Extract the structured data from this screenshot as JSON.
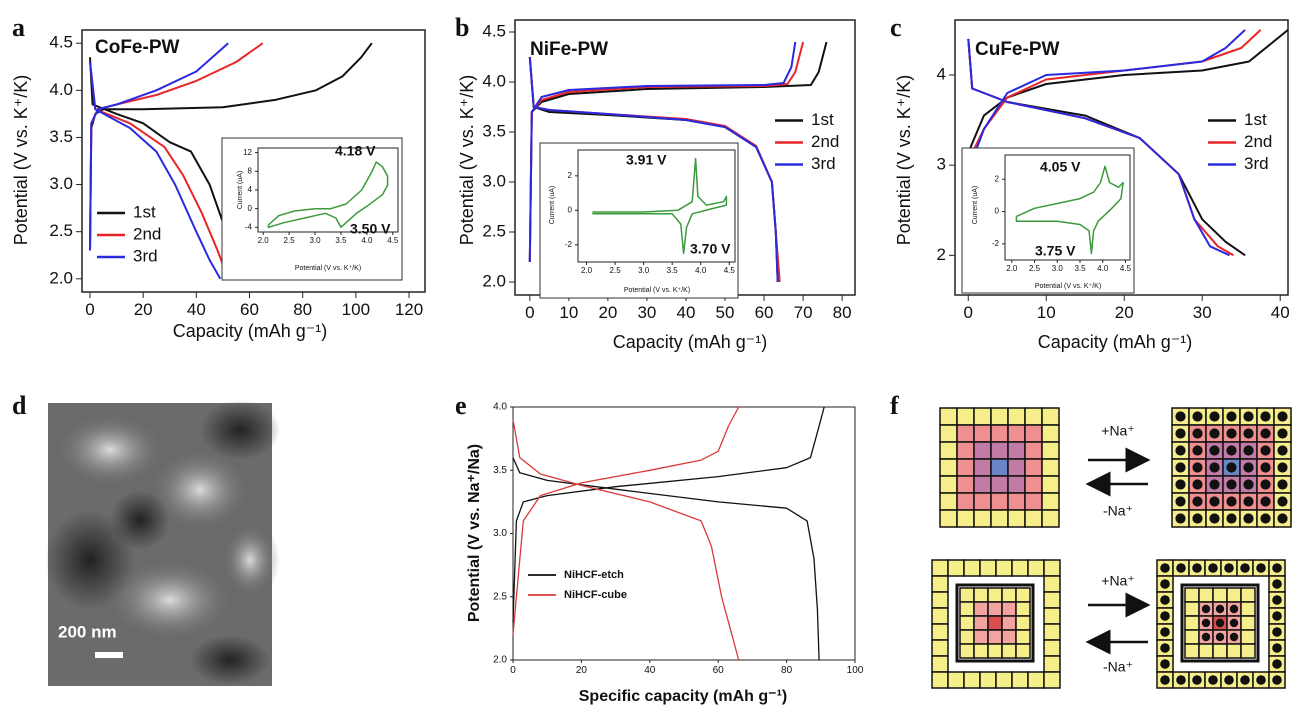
{
  "panel_labels": [
    "a",
    "b",
    "c",
    "d",
    "e",
    "f"
  ],
  "chart_data": [
    {
      "type": "line",
      "title": "CoFe-PW",
      "x_label": "Capacity (mAh g⁻¹)",
      "y_label": "Potential (V vs. K⁺/K)",
      "xlim": [
        -3,
        126
      ],
      "ylim": [
        1.86,
        4.64
      ],
      "xticks": [
        0,
        20,
        40,
        60,
        80,
        100,
        120
      ],
      "yticks": [
        {
          "value": 2,
          "label": "2.0"
        },
        2.5,
        {
          "value": 3,
          "label": "3.0"
        },
        3.5,
        {
          "value": 4,
          "label": "4.0"
        },
        4.5
      ],
      "legend": "lower left",
      "series": [
        {
          "name": "1st",
          "color": "#111111",
          "x": [
            0,
            0.5,
            2,
            5,
            20,
            50,
            70,
            85,
            95,
            102,
            106,
            null,
            0,
            1,
            10,
            20,
            30,
            38,
            45,
            50,
            55,
            60
          ],
          "values": [
            2.3,
            3.6,
            3.75,
            3.8,
            3.8,
            3.82,
            3.9,
            4.0,
            4.15,
            4.35,
            4.5,
            null,
            4.35,
            3.85,
            3.75,
            3.65,
            3.45,
            3.35,
            3.0,
            2.6,
            2.3,
            2.0
          ]
        },
        {
          "name": "2nd",
          "color": "#e8262a",
          "x": [
            0,
            0.5,
            3,
            10,
            25,
            40,
            55,
            65,
            null,
            0,
            2,
            15,
            28,
            35,
            42,
            48,
            52
          ],
          "values": [
            2.3,
            3.65,
            3.8,
            3.85,
            3.95,
            4.1,
            4.3,
            4.5,
            null,
            4.3,
            3.8,
            3.65,
            3.4,
            3.1,
            2.7,
            2.3,
            2.0
          ]
        },
        {
          "name": "3rd",
          "color": "#2a2ae0",
          "x": [
            0,
            0.5,
            3,
            10,
            25,
            40,
            52,
            null,
            0,
            2,
            15,
            25,
            32,
            40,
            45,
            49
          ],
          "values": [
            2.3,
            3.65,
            3.8,
            3.85,
            4.0,
            4.2,
            4.5,
            null,
            4.3,
            3.8,
            3.6,
            3.35,
            3.0,
            2.5,
            2.2,
            2.0
          ]
        }
      ]
    },
    {
      "type": "line",
      "x_label": "Potential (V vs. K⁺/K)",
      "y_label": "Current (uA)",
      "xlim": [
        1.9,
        4.6
      ],
      "ylim": [
        -5,
        13
      ],
      "xticks": [
        {
          "value": 2,
          "label": "2.0"
        },
        2.5,
        {
          "value": 3,
          "label": "3.0"
        },
        3.5,
        {
          "value": 4,
          "label": "4.0"
        },
        4.5
      ],
      "yticks": [
        -4,
        0,
        4,
        8,
        12
      ],
      "annotations": [
        "4.18 V",
        "3.50 V"
      ],
      "series": [
        {
          "color": "#3c9a3c",
          "x": [
            2.1,
            2.3,
            2.6,
            3.0,
            3.3,
            3.6,
            3.9,
            4.1,
            4.18,
            4.3,
            4.4,
            4.4,
            4.3,
            4.0,
            3.8,
            3.6,
            3.5,
            3.4,
            3.2,
            3.0,
            2.8,
            2.6,
            2.4,
            2.1,
            2.1
          ],
          "values": [
            -3.5,
            -1.5,
            -0.5,
            0,
            0,
            1,
            4,
            8,
            10,
            9,
            7,
            5,
            3,
            0.5,
            -1,
            -3,
            -4,
            -2,
            -1,
            -1.5,
            -2,
            -2.5,
            -3,
            -4,
            -3.5
          ]
        }
      ]
    },
    {
      "type": "line",
      "title": "NiFe-PW",
      "x_label": "Capacity (mAh g⁻¹)",
      "y_label": "Potential (V vs. K⁺/K)",
      "xlim": [
        -3.8,
        83.3
      ],
      "ylim": [
        1.87,
        4.62
      ],
      "xticks": [
        0,
        10,
        20,
        30,
        40,
        50,
        60,
        70,
        80
      ],
      "yticks": [
        {
          "value": 2,
          "label": "2.0"
        },
        2.5,
        {
          "value": 3,
          "label": "3.0"
        },
        3.5,
        {
          "value": 4,
          "label": "4.0"
        },
        4.5
      ],
      "legend": "center right",
      "series": [
        {
          "name": "1st",
          "color": "#111111",
          "x": [
            0,
            0.5,
            3,
            10,
            30,
            60,
            72,
            74,
            76,
            null,
            0,
            1,
            5,
            20,
            40,
            50,
            58,
            62,
            63,
            63.5
          ],
          "values": [
            2.2,
            3.7,
            3.8,
            3.88,
            3.93,
            3.95,
            3.97,
            4.1,
            4.4,
            null,
            4.25,
            3.75,
            3.7,
            3.67,
            3.62,
            3.55,
            3.35,
            3.0,
            2.5,
            2.0
          ]
        },
        {
          "name": "2nd",
          "color": "#e8262a",
          "x": [
            0,
            0.5,
            3,
            10,
            30,
            60,
            66,
            68,
            70,
            null,
            0,
            1,
            5,
            20,
            40,
            50,
            58,
            62,
            63,
            64
          ],
          "values": [
            2.2,
            3.7,
            3.82,
            3.9,
            3.95,
            3.96,
            3.98,
            4.1,
            4.4,
            null,
            4.25,
            3.75,
            3.72,
            3.68,
            3.63,
            3.56,
            3.36,
            3.0,
            2.5,
            2.0
          ]
        },
        {
          "name": "3rd",
          "color": "#2a2ae0",
          "x": [
            0,
            0.5,
            3,
            10,
            30,
            60,
            65,
            67,
            68,
            null,
            0,
            1,
            5,
            20,
            40,
            50,
            58,
            62,
            63,
            63.5
          ],
          "values": [
            2.2,
            3.7,
            3.85,
            3.92,
            3.96,
            3.97,
            3.99,
            4.15,
            4.4,
            null,
            4.25,
            3.75,
            3.72,
            3.68,
            3.62,
            3.55,
            3.35,
            3.0,
            2.5,
            2.0
          ]
        }
      ]
    },
    {
      "type": "line",
      "x_label": "Potential (V vs. K⁺/K)",
      "y_label": "Current (uA)",
      "xlim": [
        1.85,
        4.6
      ],
      "ylim": [
        -3,
        3.5
      ],
      "xticks": [
        {
          "value": 2,
          "label": "2.0"
        },
        2.5,
        {
          "value": 3,
          "label": "3.0"
        },
        3.5,
        {
          "value": 4,
          "label": "4.0"
        },
        4.5
      ],
      "yticks": [
        -2,
        0,
        2
      ],
      "annotations": [
        "3.91 V",
        "3.70 V"
      ],
      "series": [
        {
          "color": "#3c9a3c",
          "x": [
            2.1,
            3.0,
            3.6,
            3.85,
            3.91,
            3.95,
            4.1,
            4.4,
            4.45,
            4.45,
            4.2,
            3.85,
            3.75,
            3.7,
            3.65,
            3.5,
            3.0,
            2.1
          ],
          "values": [
            -0.1,
            -0.1,
            0,
            0.5,
            3,
            0.8,
            0.3,
            0.5,
            0.8,
            0.3,
            0.1,
            -0.2,
            -1,
            -2.5,
            -0.8,
            -0.2,
            -0.2,
            -0.2
          ]
        }
      ]
    },
    {
      "type": "line",
      "title": "CuFe-PW",
      "x_label": "Capacity (mAh g⁻¹)",
      "y_label": "Potential (V vs. K⁺/K)",
      "xlim": [
        -1.7,
        41.0
      ],
      "ylim": [
        1.56,
        4.61
      ],
      "xticks": [
        0,
        10,
        20,
        30,
        40
      ],
      "yticks": [
        2,
        3,
        4
      ],
      "legend": "center right",
      "series": [
        {
          "name": "1st",
          "color": "#111111",
          "x": [
            0,
            0.3,
            2,
            5,
            10,
            20,
            30,
            36,
            41,
            null,
            0,
            0.5,
            5,
            15,
            22,
            27,
            30,
            33,
            35.5
          ],
          "values": [
            2.1,
            3.2,
            3.55,
            3.75,
            3.9,
            4.0,
            4.05,
            4.15,
            4.5,
            null,
            4.4,
            3.85,
            3.7,
            3.55,
            3.3,
            2.9,
            2.4,
            2.15,
            2.0
          ]
        },
        {
          "name": "2nd",
          "color": "#e8262a",
          "x": [
            0,
            0.3,
            2,
            5,
            10,
            20,
            30,
            35,
            37.5,
            null,
            0,
            0.5,
            5,
            15,
            22,
            27,
            29,
            32,
            34
          ],
          "values": [
            2.3,
            3.1,
            3.4,
            3.75,
            3.95,
            4.05,
            4.15,
            4.3,
            4.5,
            null,
            4.4,
            3.85,
            3.7,
            3.52,
            3.3,
            2.9,
            2.4,
            2.1,
            2.0
          ]
        },
        {
          "name": "3rd",
          "color": "#2a2ae0",
          "x": [
            0,
            0.3,
            2,
            5,
            10,
            20,
            30,
            33,
            35.5,
            null,
            0,
            0.5,
            5,
            15,
            22,
            27,
            29,
            31,
            33.5
          ],
          "values": [
            2.1,
            3.0,
            3.4,
            3.8,
            4.0,
            4.05,
            4.15,
            4.3,
            4.5,
            null,
            4.4,
            3.85,
            3.7,
            3.52,
            3.3,
            2.9,
            2.4,
            2.1,
            2.0
          ]
        }
      ]
    },
    {
      "type": "line",
      "x_label": "Potential (V vs. K⁺/K)",
      "y_label": "Current (uA)",
      "xlim": [
        1.85,
        4.6
      ],
      "ylim": [
        -3,
        3.5
      ],
      "xticks": [
        {
          "value": 2,
          "label": "2.0"
        },
        2.5,
        {
          "value": 3,
          "label": "3.0"
        },
        3.5,
        {
          "value": 4,
          "label": "4.0"
        },
        4.5
      ],
      "yticks": [
        -2,
        0,
        2
      ],
      "annotations": [
        "4.05 V",
        "3.75 V"
      ],
      "series": [
        {
          "color": "#3c9a3c",
          "x": [
            2.1,
            2.5,
            3.0,
            3.5,
            3.8,
            3.95,
            4.05,
            4.15,
            4.35,
            4.45,
            4.4,
            4.2,
            3.9,
            3.8,
            3.75,
            3.7,
            3.5,
            3.0,
            2.5,
            2.1,
            2.1
          ],
          "values": [
            -0.3,
            0.2,
            0.5,
            0.8,
            1.2,
            1.8,
            2.8,
            1.8,
            1.5,
            1.8,
            0.8,
            0.2,
            -0.6,
            -1.2,
            -2.6,
            -1.2,
            -0.8,
            -0.6,
            -0.6,
            -0.6,
            -0.3
          ]
        }
      ]
    },
    {
      "type": "line",
      "x_label": "Specific capacity (mAh g⁻¹)",
      "y_label": "Potential (V vs. Na⁺/Na)",
      "xlim": [
        0,
        100
      ],
      "ylim": [
        2.0,
        4.0
      ],
      "xticks": [
        0,
        20,
        40,
        60,
        80,
        100
      ],
      "yticks": [
        {
          "value": 2,
          "label": "2.0"
        },
        2.5,
        {
          "value": 3,
          "label": "3.0"
        },
        3.5,
        {
          "value": 4,
          "label": "4.0"
        }
      ],
      "legend": "lower left",
      "series": [
        {
          "name": "NiHCF-etch",
          "color": "#111111",
          "x": [
            0,
            1,
            3,
            10,
            30,
            60,
            80,
            87,
            89,
            91,
            null,
            0,
            2,
            10,
            30,
            60,
            80,
            86,
            88,
            89,
            89.5
          ],
          "values": [
            2.3,
            3.1,
            3.25,
            3.3,
            3.37,
            3.45,
            3.52,
            3.6,
            3.8,
            4.0,
            null,
            3.6,
            3.48,
            3.42,
            3.35,
            3.25,
            3.2,
            3.1,
            2.8,
            2.4,
            2.0
          ]
        },
        {
          "name": "NiHCF-cube",
          "color": "#d9393b",
          "x": [
            0,
            1,
            3,
            8,
            20,
            40,
            55,
            60,
            63,
            66,
            null,
            0,
            2,
            8,
            20,
            40,
            55,
            58,
            61,
            64,
            66
          ],
          "values": [
            2.2,
            2.5,
            3.1,
            3.3,
            3.4,
            3.5,
            3.58,
            3.65,
            3.85,
            4.0,
            null,
            3.9,
            3.6,
            3.47,
            3.38,
            3.25,
            3.1,
            2.9,
            2.5,
            2.2,
            2.0
          ]
        }
      ]
    }
  ],
  "image": {
    "scale_bar": "200 nm"
  },
  "diagram": {
    "labels": [
      "+Na⁺",
      "-Na⁺",
      "+Na⁺",
      "-Na⁺"
    ]
  }
}
